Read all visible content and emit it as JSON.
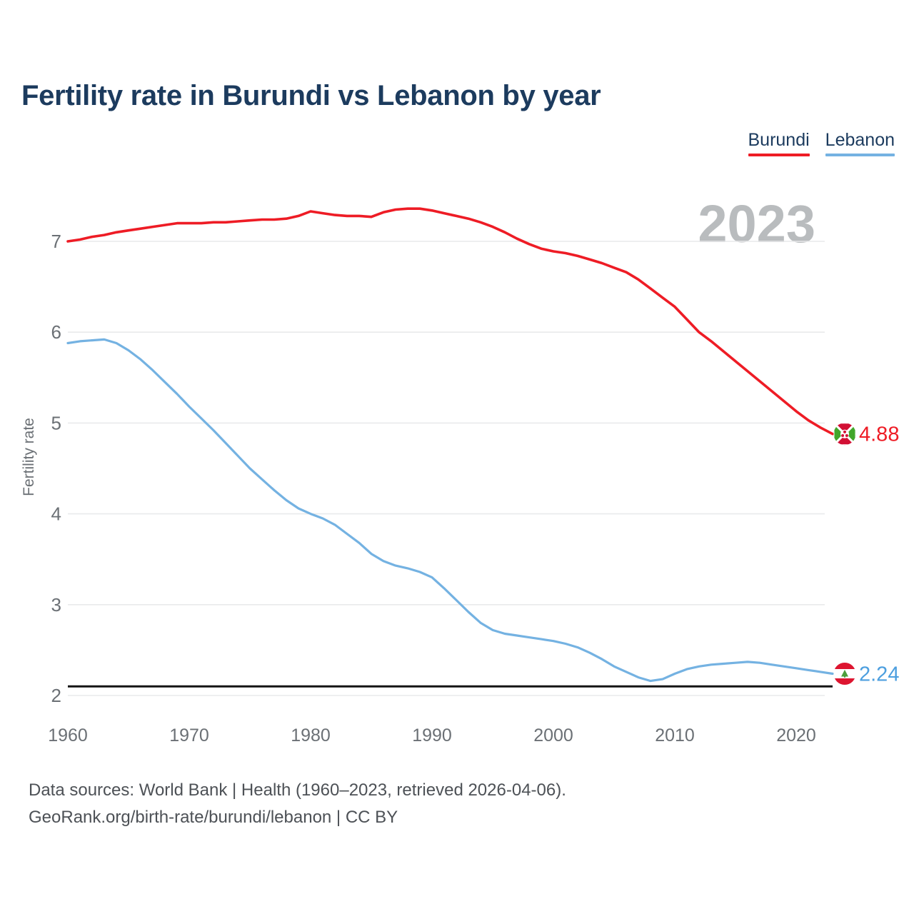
{
  "title": "Fertility rate in Burundi vs Lebanon by year",
  "watermark": "2023",
  "legend": {
    "items": [
      {
        "label": "Burundi",
        "color": "#ee1c25"
      },
      {
        "label": "Lebanon",
        "color": "#74b2e2"
      }
    ]
  },
  "footer": {
    "line1": "Data sources: World Bank | Health (1960–2023, retrieved 2026-04-06).",
    "line2": "GeoRank.org/birth-rate/burundi/lebanon | CC BY"
  },
  "chart_data": {
    "type": "line",
    "title": "Fertility rate in Burundi vs Lebanon by year",
    "xlabel": "",
    "ylabel": "Fertility rate",
    "x_ticks": [
      1960,
      1970,
      1980,
      1990,
      2000,
      2010,
      2020
    ],
    "y_ticks": [
      2,
      3,
      4,
      5,
      6,
      7
    ],
    "xlim": [
      1960,
      2023
    ],
    "ylim": [
      2,
      7.55
    ],
    "grid": "horizontal",
    "legend_position": "top-right",
    "reference_line": {
      "value": 2.1,
      "color": "#141414"
    },
    "x": [
      1960,
      1961,
      1962,
      1963,
      1964,
      1965,
      1966,
      1967,
      1968,
      1969,
      1970,
      1971,
      1972,
      1973,
      1974,
      1975,
      1976,
      1977,
      1978,
      1979,
      1980,
      1981,
      1982,
      1983,
      1984,
      1985,
      1986,
      1987,
      1988,
      1989,
      1990,
      1991,
      1992,
      1993,
      1994,
      1995,
      1996,
      1997,
      1998,
      1999,
      2000,
      2001,
      2002,
      2003,
      2004,
      2005,
      2006,
      2007,
      2008,
      2009,
      2010,
      2011,
      2012,
      2013,
      2014,
      2015,
      2016,
      2017,
      2018,
      2019,
      2020,
      2021,
      2022,
      2023
    ],
    "series": [
      {
        "name": "Burundi",
        "color": "#ee1c25",
        "label_color": "#ee1c25",
        "end_label": "4.88",
        "flag": "burundi-flag-icon",
        "values": [
          7.0,
          7.02,
          7.05,
          7.07,
          7.1,
          7.12,
          7.14,
          7.16,
          7.18,
          7.2,
          7.2,
          7.2,
          7.21,
          7.21,
          7.22,
          7.23,
          7.24,
          7.24,
          7.25,
          7.28,
          7.33,
          7.31,
          7.29,
          7.28,
          7.28,
          7.27,
          7.32,
          7.35,
          7.36,
          7.36,
          7.34,
          7.31,
          7.28,
          7.25,
          7.21,
          7.16,
          7.1,
          7.03,
          6.97,
          6.92,
          6.89,
          6.87,
          6.84,
          6.8,
          6.76,
          6.71,
          6.66,
          6.58,
          6.48,
          6.38,
          6.28,
          6.14,
          6.0,
          5.9,
          5.79,
          5.68,
          5.57,
          5.46,
          5.35,
          5.24,
          5.13,
          5.03,
          4.95,
          4.88
        ]
      },
      {
        "name": "Lebanon",
        "color": "#74b2e2",
        "label_color": "#4d9fdf",
        "end_label": "2.24",
        "flag": "lebanon-flag-icon",
        "values": [
          5.88,
          5.9,
          5.91,
          5.92,
          5.88,
          5.8,
          5.7,
          5.58,
          5.45,
          5.32,
          5.18,
          5.05,
          4.92,
          4.78,
          4.64,
          4.5,
          4.38,
          4.26,
          4.15,
          4.06,
          4.0,
          3.95,
          3.88,
          3.78,
          3.68,
          3.56,
          3.48,
          3.43,
          3.4,
          3.36,
          3.3,
          3.18,
          3.05,
          2.92,
          2.8,
          2.72,
          2.68,
          2.66,
          2.64,
          2.62,
          2.6,
          2.57,
          2.53,
          2.47,
          2.4,
          2.32,
          2.26,
          2.2,
          2.16,
          2.18,
          2.24,
          2.29,
          2.32,
          2.34,
          2.35,
          2.36,
          2.37,
          2.36,
          2.34,
          2.32,
          2.3,
          2.28,
          2.26,
          2.24
        ]
      }
    ]
  }
}
